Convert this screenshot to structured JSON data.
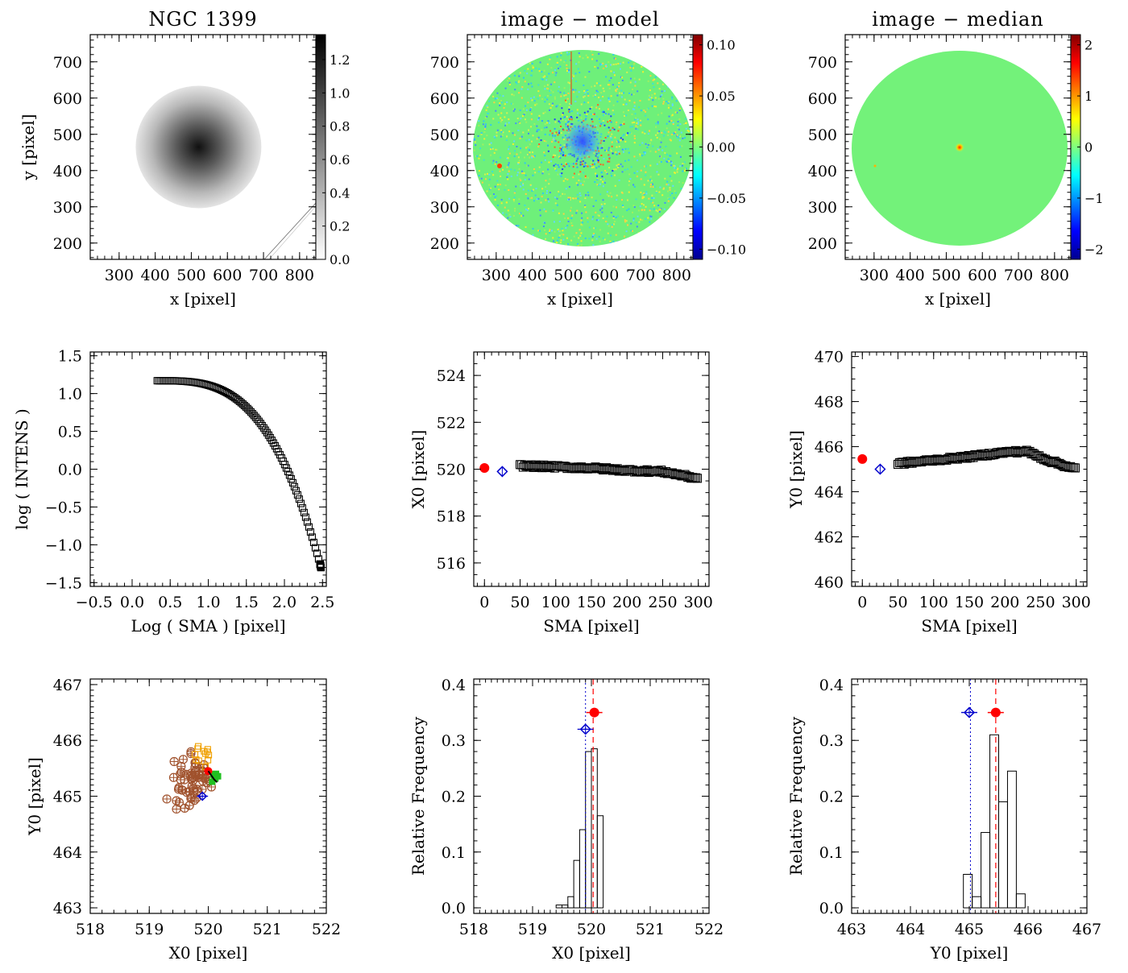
{
  "colors": {
    "axes": "#000000",
    "model_green": "#6ef07a",
    "median_green": "#73f27a",
    "red_marker": "#ff0000",
    "blue_marker": "#0000cc",
    "brown_points": "#a0522d",
    "orange_points": "#f0a000",
    "green_points": "#20c020"
  },
  "chart_data": [
    {
      "id": "p1",
      "type": "heatmap",
      "title": "NGC 1399",
      "xlabel": "x [pixel]",
      "ylabel": "y [pixel]",
      "xlim": [
        220,
        845
      ],
      "ylim": [
        155,
        775
      ],
      "xticks": [
        "300",
        "400",
        "500",
        "600",
        "700",
        "800"
      ],
      "yticks": [
        "200",
        "300",
        "400",
        "500",
        "600",
        "700"
      ],
      "colormap": "gray_r",
      "colorbar": {
        "range": [
          0.0,
          1.35
        ],
        "ticks": [
          "0.0",
          "0.2",
          "0.4",
          "0.6",
          "0.8",
          "1.0",
          "1.2"
        ]
      },
      "galaxy_center": [
        520,
        465
      ]
    },
    {
      "id": "p2",
      "type": "heatmap",
      "title": "image − model",
      "xlabel": "x [pixel]",
      "ylabel": "",
      "xlim": [
        220,
        845
      ],
      "ylim": [
        155,
        775
      ],
      "xticks": [
        "300",
        "400",
        "500",
        "600",
        "700",
        "800"
      ],
      "yticks": [
        "200",
        "300",
        "400",
        "500",
        "600",
        "700"
      ],
      "colormap": "jet",
      "colorbar": {
        "range": [
          -0.11,
          0.11
        ],
        "ticks": [
          "0.10",
          "0.05",
          "0.00",
          "−0.05",
          "−0.10"
        ]
      }
    },
    {
      "id": "p3",
      "type": "heatmap",
      "title": "image − median",
      "xlabel": "x [pixel]",
      "ylabel": "",
      "xlim": [
        220,
        845
      ],
      "ylim": [
        155,
        775
      ],
      "xticks": [
        "300",
        "400",
        "500",
        "600",
        "700",
        "800"
      ],
      "yticks": [
        "200",
        "300",
        "400",
        "500",
        "600",
        "700"
      ],
      "colormap": "jet",
      "colorbar": {
        "range": [
          -2.2,
          2.2
        ],
        "ticks": [
          "2",
          "1",
          "0",
          "−1",
          "−2"
        ]
      }
    },
    {
      "id": "p4",
      "type": "scatter",
      "title": "",
      "xlabel": "Log ( SMA ) [pixel]",
      "ylabel": "log ( INTENS )",
      "xlim": [
        -0.55,
        2.55
      ],
      "ylim": [
        -1.55,
        1.55
      ],
      "xticks": [
        "−0.5",
        "0.0",
        "0.5",
        "1.0",
        "1.5",
        "2.0",
        "2.5"
      ],
      "yticks": [
        "1.5",
        "1.0",
        "0.5",
        "0.0",
        "−0.5",
        "−1.0",
        "−1.5"
      ],
      "marker": "square",
      "x_start": 0.33,
      "x_end": 2.48,
      "y_start": 1.17,
      "y_end": -1.3
    },
    {
      "id": "p5",
      "type": "scatter",
      "title": "",
      "xlabel": "SMA [pixel]",
      "ylabel": "X0 [pixel]",
      "xlim": [
        -15,
        315
      ],
      "ylim": [
        515,
        525
      ],
      "xticks": [
        "0",
        "50",
        "100",
        "150",
        "200",
        "250",
        "300"
      ],
      "yticks": [
        "524",
        "522",
        "520",
        "518",
        "516"
      ],
      "red_point": [
        0,
        520.05
      ],
      "blue_point": [
        25,
        519.9
      ],
      "series_x_range": [
        50,
        300
      ],
      "series_y_anchors": [
        [
          50,
          520.15
        ],
        [
          100,
          520.1
        ],
        [
          150,
          520.05
        ],
        [
          200,
          519.95
        ],
        [
          250,
          519.9
        ],
        [
          300,
          519.6
        ]
      ]
    },
    {
      "id": "p6",
      "type": "scatter",
      "title": "",
      "xlabel": "SMA [pixel]",
      "ylabel": "Y0 [pixel]",
      "xlim": [
        -15,
        315
      ],
      "ylim": [
        459.8,
        470.2
      ],
      "xticks": [
        "0",
        "50",
        "100",
        "150",
        "200",
        "250",
        "300"
      ],
      "yticks": [
        "470",
        "468",
        "466",
        "464",
        "462",
        "460"
      ],
      "red_point": [
        0,
        465.45
      ],
      "blue_point": [
        25,
        465.0
      ],
      "series_x_range": [
        50,
        300
      ],
      "series_y_anchors": [
        [
          50,
          465.25
        ],
        [
          100,
          465.4
        ],
        [
          150,
          465.55
        ],
        [
          200,
          465.75
        ],
        [
          230,
          465.8
        ],
        [
          260,
          465.4
        ],
        [
          300,
          465.0
        ]
      ]
    },
    {
      "id": "p7",
      "type": "scatter",
      "title": "",
      "xlabel": "X0 [pixel]",
      "ylabel": "Y0 [pixel]",
      "xlim": [
        518,
        522
      ],
      "ylim": [
        462.9,
        467.1
      ],
      "xticks": [
        "518",
        "519",
        "520",
        "521",
        "522"
      ],
      "yticks": [
        "467",
        "466",
        "465",
        "464",
        "463"
      ],
      "cluster_center": [
        519.9,
        465.35
      ],
      "red_point": [
        520.0,
        465.45
      ],
      "blue_point": [
        519.9,
        465.0
      ]
    },
    {
      "id": "p8",
      "type": "bar",
      "title": "",
      "xlabel": "X0 [pixel]",
      "ylabel": "Relative Frequency",
      "xlim": [
        518,
        522
      ],
      "ylim": [
        -0.01,
        0.41
      ],
      "xticks": [
        "518",
        "519",
        "520",
        "521",
        "522"
      ],
      "yticks": [
        "0.4",
        "0.3",
        "0.2",
        "0.1",
        "0.0"
      ],
      "bin_edges": [
        519.4,
        519.5,
        519.6,
        519.7,
        519.8,
        519.9,
        520.0,
        520.1,
        520.2
      ],
      "values": [
        0.005,
        0.005,
        0.02,
        0.085,
        0.14,
        0.28,
        0.285,
        0.165
      ],
      "red_point": [
        520.05,
        0.35
      ],
      "blue_point": [
        519.9,
        0.32
      ],
      "red_line_x": 520.03,
      "blue_line_x": 519.9
    },
    {
      "id": "p9",
      "type": "bar",
      "title": "",
      "xlabel": "Y0 [pixel]",
      "ylabel": "Relative Frequency",
      "xlim": [
        463,
        467
      ],
      "ylim": [
        -0.01,
        0.41
      ],
      "xticks": [
        "463",
        "464",
        "465",
        "466",
        "467"
      ],
      "yticks": [
        "0.4",
        "0.3",
        "0.2",
        "0.1",
        "0.0"
      ],
      "bin_edges": [
        464.9,
        465.05,
        465.2,
        465.35,
        465.5,
        465.65,
        465.8,
        465.95
      ],
      "values": [
        0.06,
        0.02,
        0.135,
        0.31,
        0.19,
        0.245,
        0.025
      ],
      "red_point": [
        465.45,
        0.35
      ],
      "blue_point": [
        465.0,
        0.35
      ],
      "red_line_x": 465.45,
      "blue_line_x": 465.02
    }
  ]
}
